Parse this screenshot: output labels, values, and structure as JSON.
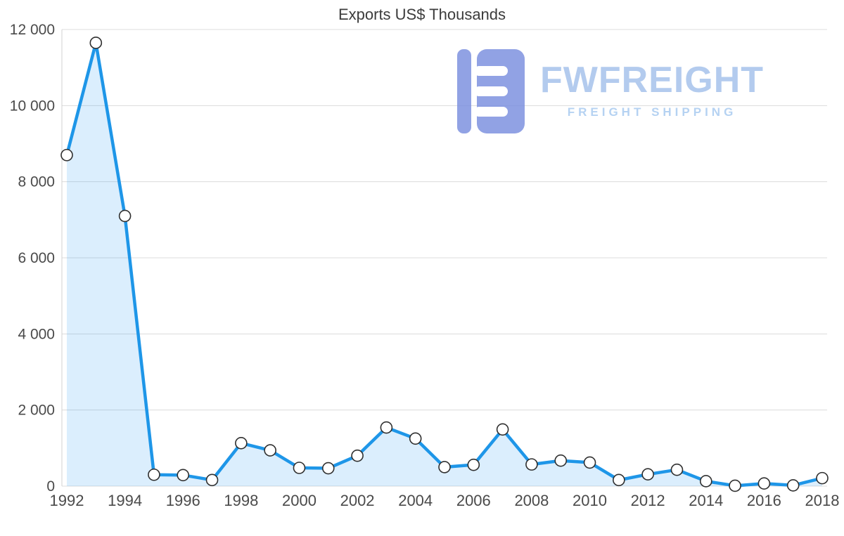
{
  "chart_data": {
    "type": "area",
    "title": "Exports US$ Thousands",
    "x": [
      1992,
      1993,
      1994,
      1995,
      1996,
      1997,
      1998,
      1999,
      2000,
      2001,
      2002,
      2003,
      2004,
      2005,
      2006,
      2007,
      2008,
      2009,
      2010,
      2011,
      2012,
      2013,
      2014,
      2015,
      2016,
      2017,
      2018
    ],
    "values": [
      8700,
      11650,
      7100,
      300,
      290,
      160,
      1130,
      940,
      480,
      470,
      800,
      1540,
      1250,
      500,
      560,
      1490,
      570,
      670,
      620,
      160,
      310,
      430,
      130,
      10,
      70,
      20,
      210
    ],
    "xlabel": "",
    "ylabel": "",
    "ylim": [
      0,
      12000
    ],
    "yticks": [
      0,
      2000,
      4000,
      6000,
      8000,
      10000,
      12000
    ],
    "ytick_labels": [
      "0",
      "2 000",
      "4 000",
      "6 000",
      "8 000",
      "10 000",
      "12 000"
    ],
    "xtick_labels": [
      "1992",
      "1994",
      "1996",
      "1998",
      "2000",
      "2002",
      "2004",
      "2006",
      "2008",
      "2010",
      "2012",
      "2014",
      "2016",
      "2018"
    ],
    "grid": true,
    "legend": "none",
    "line_color": "#1e96e8",
    "area_color": "rgba(33,150,243,0.16)",
    "marker_fill": "#ffffff",
    "marker_stroke": "#2f2f2f",
    "grid_color": "#dcdcdc",
    "axis_label_color": "#4a4a4a"
  },
  "logo": {
    "wordmark": "FWFREIGHT",
    "tagline": "FREIGHT SHIPPING",
    "icon_color": "#7e92e0",
    "text_color": "#a6c3ec"
  }
}
